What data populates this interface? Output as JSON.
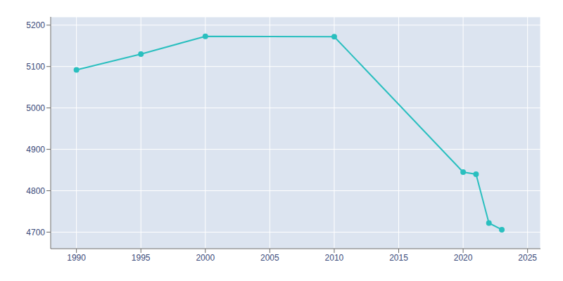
{
  "chart_data": {
    "type": "line",
    "x": [
      1990,
      1995,
      2000,
      2010,
      2020,
      2021,
      2022,
      2023
    ],
    "values": [
      5092,
      5130,
      5173,
      5172,
      4845,
      4840,
      4722,
      4706
    ],
    "color": "#2abfbf",
    "marker": "circle",
    "xlim": [
      1988,
      2026
    ],
    "ylim": [
      4660,
      5220
    ],
    "xticks": [
      1990,
      1995,
      2000,
      2005,
      2010,
      2015,
      2020,
      2025
    ],
    "yticks": [
      4700,
      4800,
      4900,
      5000,
      5100,
      5200
    ],
    "grid": true
  }
}
